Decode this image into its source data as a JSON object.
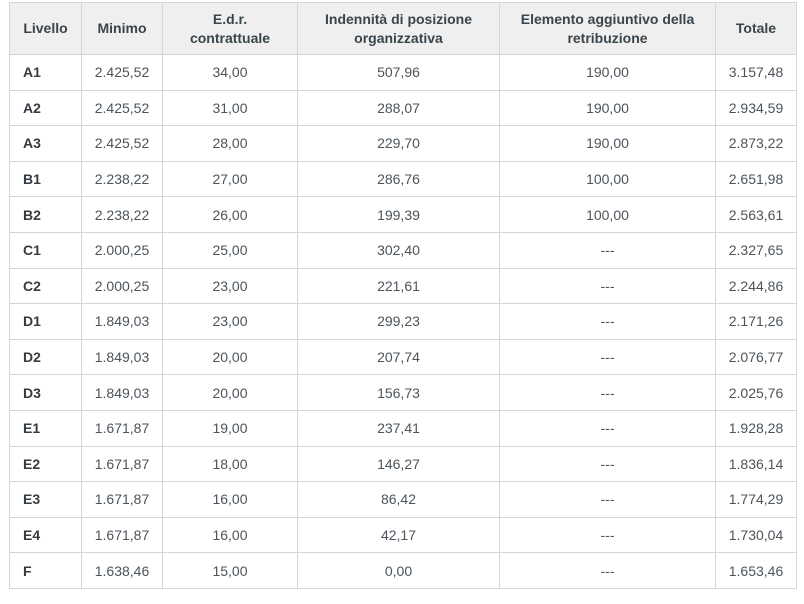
{
  "table": {
    "columns": [
      "Livello",
      "Minimo",
      "E.d.r. contrattuale",
      "Indennità di posizione organizzativa",
      "Elemento aggiuntivo della retribuzione",
      "Totale"
    ],
    "rows": [
      [
        "A1",
        "2.425,52",
        "34,00",
        "507,96",
        "190,00",
        "3.157,48"
      ],
      [
        "A2",
        "2.425,52",
        "31,00",
        "288,07",
        "190,00",
        "2.934,59"
      ],
      [
        "A3",
        "2.425,52",
        "28,00",
        "229,70",
        "190,00",
        "2.873,22"
      ],
      [
        "B1",
        "2.238,22",
        "27,00",
        "286,76",
        "100,00",
        "2.651,98"
      ],
      [
        "B2",
        "2.238,22",
        "26,00",
        "199,39",
        "100,00",
        "2.563,61"
      ],
      [
        "C1",
        "2.000,25",
        "25,00",
        "302,40",
        "---",
        "2.327,65"
      ],
      [
        "C2",
        "2.000,25",
        "23,00",
        "221,61",
        "---",
        "2.244,86"
      ],
      [
        "D1",
        "1.849,03",
        "23,00",
        "299,23",
        "---",
        "2.171,26"
      ],
      [
        "D2",
        "1.849,03",
        "20,00",
        "207,74",
        "---",
        "2.076,77"
      ],
      [
        "D3",
        "1.849,03",
        "20,00",
        "156,73",
        "---",
        "2.025,76"
      ],
      [
        "E1",
        "1.671,87",
        "19,00",
        "237,41",
        "---",
        "1.928,28"
      ],
      [
        "E2",
        "1.671,87",
        "18,00",
        "146,27",
        "---",
        "1.836,14"
      ],
      [
        "E3",
        "1.671,87",
        "16,00",
        "86,42",
        "---",
        "1.774,29"
      ],
      [
        "E4",
        "1.671,87",
        "16,00",
        "42,17",
        "---",
        "1.730,04"
      ],
      [
        "F",
        "1.638,46",
        "15,00",
        "0,00",
        "---",
        "1.653,46"
      ]
    ],
    "colors": {
      "header_bg": "#efefef",
      "header_text": "#3a444b",
      "body_text": "#4c545b",
      "border": "#d5d5d5"
    }
  }
}
